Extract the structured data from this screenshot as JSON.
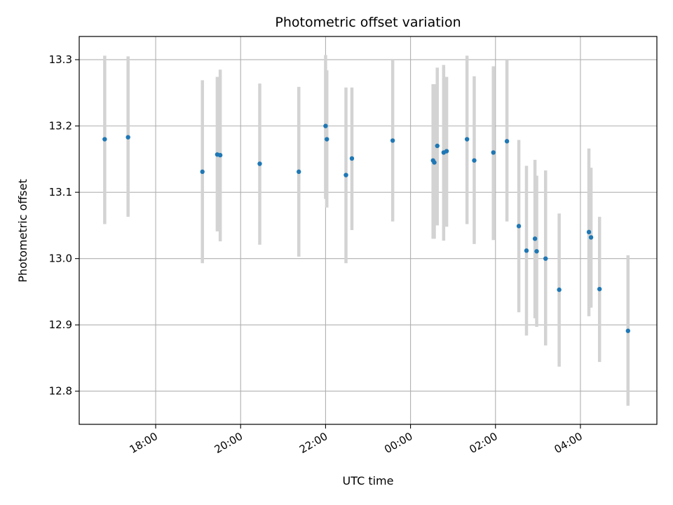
{
  "chart_data": {
    "type": "scatter",
    "title": "Photometric offset variation",
    "xlabel": "UTC time",
    "ylabel": "Photometric offset",
    "x_axis": {
      "kind": "time",
      "ticks": [
        "18:00",
        "20:00",
        "22:00",
        "00:00",
        "02:00",
        "04:00"
      ],
      "tick_hours": [
        18,
        20,
        22,
        24,
        26,
        28
      ],
      "xlim_hours": [
        16.2,
        29.8
      ]
    },
    "y_axis": {
      "ticks": [
        "12.8",
        "12.9",
        "13.0",
        "13.1",
        "13.2",
        "13.3"
      ],
      "tick_values": [
        12.8,
        12.9,
        13.0,
        13.1,
        13.2,
        13.3
      ],
      "ylim": [
        12.75,
        13.335
      ]
    },
    "grid": true,
    "colors": {
      "point": "#1f77b4",
      "errorbar": "#d3d3d3",
      "grid": "#b0b0b0"
    },
    "points_x_hours": [
      16.8,
      17.35,
      19.1,
      19.45,
      19.52,
      20.45,
      21.37,
      22.0,
      22.03,
      22.48,
      22.62,
      23.58,
      24.53,
      24.56,
      24.63,
      24.78,
      24.85,
      25.33,
      25.5,
      25.95,
      26.27,
      26.55,
      26.73,
      26.93,
      26.97,
      27.18,
      27.5,
      28.2,
      28.25,
      28.45,
      29.12
    ],
    "points_y": [
      13.18,
      13.183,
      13.131,
      13.157,
      13.156,
      13.143,
      13.131,
      13.2,
      13.18,
      13.126,
      13.151,
      13.178,
      13.148,
      13.145,
      13.17,
      13.16,
      13.162,
      13.18,
      13.148,
      13.16,
      13.177,
      13.049,
      13.012,
      13.03,
      13.011,
      13.0,
      12.953,
      13.04,
      13.032,
      12.954,
      12.891
    ],
    "err_low": [
      13.052,
      13.063,
      12.993,
      13.041,
      13.026,
      13.021,
      13.003,
      13.09,
      13.077,
      12.993,
      13.043,
      13.056,
      13.03,
      13.03,
      13.05,
      13.027,
      13.048,
      13.052,
      13.022,
      13.028,
      13.056,
      12.919,
      12.884,
      12.91,
      12.897,
      12.869,
      12.837,
      12.913,
      12.926,
      12.844,
      12.778
    ],
    "err_high": [
      13.306,
      13.305,
      13.269,
      13.274,
      13.285,
      13.264,
      13.259,
      13.307,
      13.284,
      13.258,
      13.258,
      13.301,
      13.263,
      13.263,
      13.288,
      13.292,
      13.274,
      13.306,
      13.275,
      13.29,
      13.299,
      13.179,
      13.14,
      13.149,
      13.125,
      13.133,
      13.068,
      13.166,
      13.137,
      13.063,
      13.005
    ]
  }
}
